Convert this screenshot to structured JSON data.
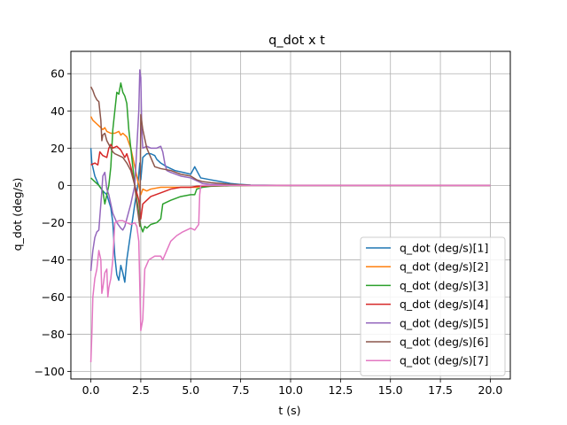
{
  "chart_data": {
    "type": "line",
    "title": "q_dot x t",
    "xlabel": "t (s)",
    "ylabel": "q_dot (deg/s)",
    "xlim": [
      -1.0,
      21.0
    ],
    "ylim": [
      -104.0,
      72.0
    ],
    "xticks": [
      0.0,
      2.5,
      5.0,
      7.5,
      10.0,
      12.5,
      15.0,
      17.5,
      20.0
    ],
    "xtick_labels": [
      "0.0",
      "2.5",
      "5.0",
      "7.5",
      "10.0",
      "12.5",
      "15.0",
      "17.5",
      "20.0"
    ],
    "yticks": [
      -100,
      -80,
      -60,
      -40,
      -20,
      0,
      20,
      40,
      60
    ],
    "ytick_labels": [
      "−100",
      "−80",
      "−60",
      "−40",
      "−20",
      "0",
      "20",
      "40",
      "60"
    ],
    "grid": true,
    "legend_position": "lower-right",
    "series": [
      {
        "name": "q_dot (deg/s)[1]",
        "color": "#1f77b4",
        "points": [
          [
            0,
            20
          ],
          [
            0.05,
            12
          ],
          [
            0.2,
            5
          ],
          [
            0.4,
            0
          ],
          [
            0.6,
            -3
          ],
          [
            0.8,
            -5
          ],
          [
            1.0,
            -12
          ],
          [
            1.1,
            -20
          ],
          [
            1.2,
            -38
          ],
          [
            1.3,
            -48
          ],
          [
            1.4,
            -51
          ],
          [
            1.5,
            -43
          ],
          [
            1.6,
            -47
          ],
          [
            1.7,
            -52
          ],
          [
            1.8,
            -40
          ],
          [
            2.0,
            -25
          ],
          [
            2.2,
            -10
          ],
          [
            2.35,
            0
          ],
          [
            2.45,
            12
          ],
          [
            2.5,
            3
          ],
          [
            2.6,
            15
          ],
          [
            2.8,
            17
          ],
          [
            3.0,
            17
          ],
          [
            3.2,
            16
          ],
          [
            3.3,
            14
          ],
          [
            3.5,
            12
          ],
          [
            3.8,
            10
          ],
          [
            4.2,
            8
          ],
          [
            4.6,
            7
          ],
          [
            5.0,
            6
          ],
          [
            5.1,
            8
          ],
          [
            5.2,
            10
          ],
          [
            5.3,
            8
          ],
          [
            5.5,
            4
          ],
          [
            6.0,
            3
          ],
          [
            6.5,
            2
          ],
          [
            7.0,
            1
          ],
          [
            7.5,
            0.5
          ],
          [
            8.0,
            0.2
          ],
          [
            10,
            0
          ],
          [
            12.5,
            0
          ],
          [
            15,
            0
          ],
          [
            17.5,
            0
          ],
          [
            20,
            0
          ]
        ]
      },
      {
        "name": "q_dot (deg/s)[2]",
        "color": "#ff7f0e",
        "points": [
          [
            0,
            37
          ],
          [
            0.1,
            35
          ],
          [
            0.3,
            33
          ],
          [
            0.4,
            32
          ],
          [
            0.6,
            30
          ],
          [
            0.7,
            31
          ],
          [
            0.8,
            29
          ],
          [
            1.0,
            28
          ],
          [
            1.2,
            28
          ],
          [
            1.4,
            29
          ],
          [
            1.5,
            27
          ],
          [
            1.6,
            28
          ],
          [
            1.8,
            26
          ],
          [
            2.0,
            20
          ],
          [
            2.2,
            10
          ],
          [
            2.4,
            0
          ],
          [
            2.5,
            -5
          ],
          [
            2.6,
            -2
          ],
          [
            2.8,
            -3
          ],
          [
            3.0,
            -2
          ],
          [
            3.5,
            -1
          ],
          [
            4.0,
            -1
          ],
          [
            4.5,
            -1
          ],
          [
            5.0,
            -1
          ],
          [
            5.3,
            -1
          ],
          [
            5.5,
            -0.5
          ],
          [
            6.0,
            -0.3
          ],
          [
            7.0,
            -0.1
          ],
          [
            8.0,
            0
          ],
          [
            10,
            0
          ],
          [
            12.5,
            0
          ],
          [
            15,
            0
          ],
          [
            17.5,
            0
          ],
          [
            20,
            0
          ]
        ]
      },
      {
        "name": "q_dot (deg/s)[3]",
        "color": "#2ca02c",
        "points": [
          [
            0,
            4
          ],
          [
            0.2,
            2
          ],
          [
            0.4,
            0
          ],
          [
            0.6,
            -3
          ],
          [
            0.7,
            -10
          ],
          [
            0.8,
            -5
          ],
          [
            0.9,
            0
          ],
          [
            1.0,
            10
          ],
          [
            1.1,
            30
          ],
          [
            1.2,
            40
          ],
          [
            1.3,
            50
          ],
          [
            1.4,
            49
          ],
          [
            1.5,
            55
          ],
          [
            1.6,
            50
          ],
          [
            1.7,
            48
          ],
          [
            1.8,
            44
          ],
          [
            1.9,
            30
          ],
          [
            2.0,
            20
          ],
          [
            2.2,
            0
          ],
          [
            2.4,
            -15
          ],
          [
            2.5,
            -22
          ],
          [
            2.6,
            -25
          ],
          [
            2.7,
            -22
          ],
          [
            2.8,
            -23
          ],
          [
            3.0,
            -21
          ],
          [
            3.3,
            -20
          ],
          [
            3.5,
            -18
          ],
          [
            3.6,
            -10
          ],
          [
            4.0,
            -8
          ],
          [
            4.5,
            -6
          ],
          [
            5.0,
            -5
          ],
          [
            5.2,
            -5
          ],
          [
            5.3,
            -2
          ],
          [
            5.6,
            -1
          ],
          [
            6.0,
            -0.5
          ],
          [
            7.0,
            -0.2
          ],
          [
            8,
            0
          ],
          [
            10,
            0
          ],
          [
            12.5,
            0
          ],
          [
            15,
            0
          ],
          [
            17.5,
            0
          ],
          [
            20,
            0
          ]
        ]
      },
      {
        "name": "q_dot (deg/s)[4]",
        "color": "#d62728",
        "points": [
          [
            0,
            11
          ],
          [
            0.2,
            12
          ],
          [
            0.35,
            11
          ],
          [
            0.45,
            18
          ],
          [
            0.6,
            16
          ],
          [
            0.8,
            15
          ],
          [
            0.9,
            20
          ],
          [
            1.0,
            22
          ],
          [
            1.1,
            20
          ],
          [
            1.3,
            21
          ],
          [
            1.5,
            19
          ],
          [
            1.7,
            15
          ],
          [
            1.8,
            17
          ],
          [
            2.0,
            10
          ],
          [
            2.2,
            0
          ],
          [
            2.4,
            -8
          ],
          [
            2.5,
            -18
          ],
          [
            2.6,
            -10
          ],
          [
            2.8,
            -8
          ],
          [
            3.0,
            -6
          ],
          [
            3.5,
            -4
          ],
          [
            4.0,
            -2
          ],
          [
            4.5,
            -1
          ],
          [
            5.0,
            -1
          ],
          [
            5.3,
            -0.5
          ],
          [
            6.0,
            -0.2
          ],
          [
            7.0,
            0
          ],
          [
            8,
            0
          ],
          [
            10,
            0
          ],
          [
            12.5,
            0
          ],
          [
            15,
            0
          ],
          [
            17.5,
            0
          ],
          [
            20,
            0
          ]
        ]
      },
      {
        "name": "q_dot (deg/s)[5]",
        "color": "#9467bd",
        "points": [
          [
            0,
            -46
          ],
          [
            0.1,
            -35
          ],
          [
            0.2,
            -28
          ],
          [
            0.3,
            -25
          ],
          [
            0.4,
            -24
          ],
          [
            0.5,
            -10
          ],
          [
            0.55,
            -3
          ],
          [
            0.6,
            5
          ],
          [
            0.7,
            7
          ],
          [
            0.8,
            -2
          ],
          [
            0.9,
            -5
          ],
          [
            1.0,
            -10
          ],
          [
            1.1,
            -15
          ],
          [
            1.3,
            -20
          ],
          [
            1.5,
            -23
          ],
          [
            1.6,
            -24
          ],
          [
            1.7,
            -22
          ],
          [
            1.8,
            -18
          ],
          [
            2.0,
            -10
          ],
          [
            2.2,
            0
          ],
          [
            2.3,
            20
          ],
          [
            2.4,
            40
          ],
          [
            2.45,
            62
          ],
          [
            2.5,
            58
          ],
          [
            2.55,
            30
          ],
          [
            2.6,
            20
          ],
          [
            2.8,
            21
          ],
          [
            3.0,
            20
          ],
          [
            3.3,
            20
          ],
          [
            3.5,
            21
          ],
          [
            3.6,
            18
          ],
          [
            3.7,
            12
          ],
          [
            3.8,
            8
          ],
          [
            4.0,
            7
          ],
          [
            4.5,
            5
          ],
          [
            5.0,
            4
          ],
          [
            5.2,
            3
          ],
          [
            5.4,
            2
          ],
          [
            5.6,
            1
          ],
          [
            6.0,
            0.5
          ],
          [
            7.0,
            0.2
          ],
          [
            8.0,
            0
          ],
          [
            10,
            0
          ],
          [
            12.5,
            0
          ],
          [
            15,
            0
          ],
          [
            17.5,
            0
          ],
          [
            20,
            0
          ]
        ]
      },
      {
        "name": "q_dot (deg/s)[6]",
        "color": "#8c564b",
        "points": [
          [
            0,
            53
          ],
          [
            0.1,
            51
          ],
          [
            0.2,
            48
          ],
          [
            0.3,
            46
          ],
          [
            0.4,
            45
          ],
          [
            0.5,
            35
          ],
          [
            0.55,
            24
          ],
          [
            0.6,
            27
          ],
          [
            0.7,
            28
          ],
          [
            0.8,
            24
          ],
          [
            0.9,
            22
          ],
          [
            1.0,
            20
          ],
          [
            1.1,
            18
          ],
          [
            1.2,
            17
          ],
          [
            1.4,
            16
          ],
          [
            1.6,
            15
          ],
          [
            1.8,
            12
          ],
          [
            2.0,
            8
          ],
          [
            2.2,
            0
          ],
          [
            2.3,
            -10
          ],
          [
            2.4,
            -18
          ],
          [
            2.45,
            -22
          ],
          [
            2.5,
            38
          ],
          [
            2.6,
            30
          ],
          [
            2.8,
            20
          ],
          [
            3.0,
            15
          ],
          [
            3.2,
            10
          ],
          [
            3.5,
            9
          ],
          [
            4.0,
            8
          ],
          [
            4.5,
            6
          ],
          [
            5.0,
            5
          ],
          [
            5.3,
            3
          ],
          [
            5.6,
            2
          ],
          [
            6.0,
            1.5
          ],
          [
            6.5,
            1
          ],
          [
            7.0,
            0.5
          ],
          [
            8.0,
            0.1
          ],
          [
            10,
            0
          ],
          [
            12.5,
            0
          ],
          [
            15,
            0
          ],
          [
            17.5,
            0
          ],
          [
            20,
            0
          ]
        ]
      },
      {
        "name": "q_dot (deg/s)[7]",
        "color": "#e377c2",
        "points": [
          [
            0,
            -95
          ],
          [
            0.05,
            -80
          ],
          [
            0.1,
            -60
          ],
          [
            0.2,
            -50
          ],
          [
            0.3,
            -45
          ],
          [
            0.4,
            -35
          ],
          [
            0.5,
            -40
          ],
          [
            0.55,
            -58
          ],
          [
            0.6,
            -55
          ],
          [
            0.7,
            -47
          ],
          [
            0.8,
            -45
          ],
          [
            0.85,
            -60
          ],
          [
            0.9,
            -55
          ],
          [
            1.0,
            -50
          ],
          [
            1.1,
            -40
          ],
          [
            1.2,
            -20
          ],
          [
            1.4,
            -19
          ],
          [
            1.6,
            -19
          ],
          [
            1.8,
            -20
          ],
          [
            2.0,
            -21
          ],
          [
            2.2,
            -20
          ],
          [
            2.3,
            -22
          ],
          [
            2.4,
            -30
          ],
          [
            2.5,
            -78
          ],
          [
            2.6,
            -72
          ],
          [
            2.7,
            -45
          ],
          [
            2.9,
            -40
          ],
          [
            3.2,
            -38
          ],
          [
            3.5,
            -38
          ],
          [
            3.6,
            -40
          ],
          [
            3.8,
            -35
          ],
          [
            4.0,
            -30
          ],
          [
            4.3,
            -27
          ],
          [
            4.6,
            -25
          ],
          [
            5.0,
            -23
          ],
          [
            5.2,
            -24
          ],
          [
            5.4,
            -21
          ],
          [
            5.45,
            -5
          ],
          [
            5.5,
            0
          ],
          [
            6.0,
            0
          ],
          [
            8,
            0
          ],
          [
            10,
            0
          ],
          [
            12.5,
            0
          ],
          [
            15,
            0
          ],
          [
            17.5,
            0
          ],
          [
            20,
            0
          ]
        ]
      }
    ]
  }
}
